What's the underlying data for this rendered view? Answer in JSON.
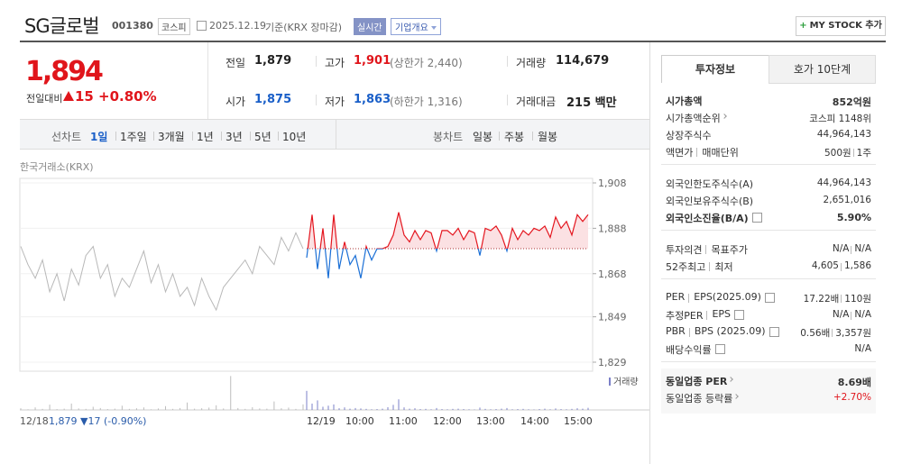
{
  "header": {
    "name": "SG글로벌",
    "code": "001380",
    "market": "코스피",
    "date": "2025.12.19",
    "basis": "기준(KRX 장마감)",
    "realtime": "실시간",
    "overview": "기업개요",
    "mystock": "MY STOCK 추가"
  },
  "price": {
    "current": "1,894",
    "change_label": "전일대비",
    "change": "15",
    "change_rate": "+0.80%"
  },
  "summary": [
    [
      {
        "label": "전일",
        "value": "1,879"
      },
      {
        "label": "고가",
        "value": "1,901",
        "note": "(상한가 2,440)",
        "color": "#e0151b"
      },
      {
        "label": "거래량",
        "value": "114,679"
      }
    ],
    [
      {
        "label": "시가",
        "value": "1,875",
        "color": "#1a5fc8"
      },
      {
        "label": "저가",
        "value": "1,863",
        "note": "(하한가 1,316)",
        "color": "#1a5fc8"
      },
      {
        "label": "거래대금",
        "value": "215 백만"
      }
    ]
  ],
  "periods": {
    "line_label": "선차트",
    "line": [
      "1일",
      "1주일",
      "3개월",
      "1년",
      "3년",
      "5년",
      "10년"
    ],
    "candle_label": "봉차트",
    "candle": [
      "일봉",
      "주봉",
      "월봉"
    ]
  },
  "chart": {
    "source": "한국거래소(KRX)",
    "ylim": [
      1829,
      1908
    ],
    "yticks": [
      {
        "value": 1908,
        "label": "1,908"
      },
      {
        "value": 1888,
        "label": "1,888"
      },
      {
        "value": 1868,
        "label": "1,868"
      },
      {
        "value": 1849,
        "label": "1,849"
      },
      {
        "value": 1829,
        "label": "1,829"
      }
    ],
    "baseline": 1879,
    "volume_label": "거래량",
    "vlim": [
      0,
      17000
    ],
    "prev_date": "12/18",
    "prev_summary": "1,879 ▼17 (-0.90%)",
    "x_labels": [
      "12/19",
      "10:00",
      "11:00",
      "12:00",
      "13:00",
      "14:00",
      "15:00"
    ],
    "colors": {
      "prev": "#b8b8b8",
      "up": "#e4161f",
      "down": "#1a6fd6",
      "fill": "#fbe1e3",
      "volume_prev": "#bdbdbd",
      "volume_today": "#7b80c8"
    },
    "prev": {
      "values": [
        1880,
        1872,
        1866,
        1874,
        1860,
        1868,
        1856,
        1870,
        1863,
        1876,
        1880,
        1866,
        1872,
        1858,
        1866,
        1862,
        1870,
        1878,
        1864,
        1872,
        1860,
        1868,
        1858,
        1862,
        1854,
        1866,
        1858,
        1852,
        1862,
        1866,
        1870,
        1874,
        1868,
        1880,
        1876,
        1872,
        1884,
        1878,
        1886,
        1879
      ],
      "volume": [
        800,
        300,
        1200,
        500,
        2500,
        400,
        600,
        3000,
        700,
        500,
        1500,
        900,
        400,
        600,
        2000,
        500,
        800,
        1200,
        300,
        700,
        1800,
        500,
        900,
        3500,
        600,
        800,
        1100,
        2200,
        700,
        16000,
        900,
        500,
        1300,
        700,
        600,
        4000,
        800,
        1100,
        500,
        2600
      ]
    },
    "today": {
      "values": [
        1875,
        1894,
        1870,
        1888,
        1866,
        1894,
        1870,
        1882,
        1872,
        1876,
        1866,
        1880,
        1874,
        1879,
        1879,
        1880,
        1885,
        1895,
        1885,
        1882,
        1887,
        1883,
        1887,
        1886,
        1878,
        1887,
        1887,
        1885,
        1888,
        1883,
        1887,
        1886,
        1876,
        1888,
        1887,
        1889,
        1885,
        1878,
        1888,
        1883,
        1887,
        1885,
        1888,
        1887,
        1889,
        1884,
        1893,
        1888,
        1891,
        1885,
        1894,
        1891,
        1894
      ],
      "volume": [
        9000,
        3000,
        4500,
        1500,
        2000,
        2600,
        800,
        1200,
        600,
        900,
        700,
        500,
        300,
        400,
        600,
        1300,
        2400,
        5000,
        1200,
        600,
        800,
        400,
        500,
        300,
        900,
        400,
        300,
        500,
        600,
        400,
        300,
        200,
        1100,
        500,
        300,
        400,
        600,
        900,
        300,
        400,
        500,
        300,
        200,
        400,
        600,
        300,
        700,
        400,
        300,
        500,
        800,
        600,
        1000
      ]
    }
  },
  "invest": {
    "tabs": [
      "투자정보",
      "호가 10단계"
    ],
    "sections": [
      {
        "rows": [
          {
            "label": [
              "시가총액"
            ],
            "value": [
              "852억원"
            ],
            "bold": true
          },
          {
            "label": [
              "시가총액순위"
            ],
            "value": [
              "코스피 1148위"
            ],
            "link": true
          },
          {
            "label": [
              "상장주식수"
            ],
            "value": [
              "44,964,143"
            ]
          },
          {
            "label": [
              "액면가",
              "매매단위"
            ],
            "value": [
              "500원",
              "1주"
            ]
          }
        ]
      },
      {
        "rows": [
          {
            "label": [
              "외국인한도주식수(A)"
            ],
            "value": [
              "44,964,143"
            ]
          },
          {
            "label": [
              "외국인보유주식수(B)"
            ],
            "value": [
              "2,651,016"
            ]
          },
          {
            "label": [
              "외국인소진율(B/A)"
            ],
            "value": [
              "5.90%"
            ],
            "bold": true,
            "help": true
          }
        ]
      },
      {
        "rows": [
          {
            "label": [
              "투자의견",
              "목표주가"
            ],
            "value": [
              "N/A",
              "N/A"
            ]
          },
          {
            "label": [
              "52주최고",
              "최저"
            ],
            "value": [
              "4,605",
              "1,586"
            ]
          }
        ]
      },
      {
        "rows": [
          {
            "label": [
              "PER",
              "EPS(2025.09)"
            ],
            "value": [
              "17.22배",
              "110원"
            ],
            "help": true
          },
          {
            "label": [
              "추정PER",
              "EPS"
            ],
            "value": [
              "N/A",
              "N/A"
            ],
            "help": true
          },
          {
            "label": [
              "PBR",
              "BPS (2025.09)"
            ],
            "value": [
              "0.56배",
              "3,357원"
            ],
            "help": true
          },
          {
            "label": [
              "배당수익률"
            ],
            "value": [
              "N/A"
            ],
            "help": true
          }
        ]
      },
      {
        "shaded": true,
        "rows": [
          {
            "label": [
              "동일업종 PER"
            ],
            "value": [
              "8.69배"
            ],
            "bold": true,
            "link": true
          },
          {
            "label": [
              "동일업종 등락률"
            ],
            "value": [
              "+2.70%"
            ],
            "link": true,
            "color": "#e0151b"
          }
        ]
      }
    ]
  }
}
